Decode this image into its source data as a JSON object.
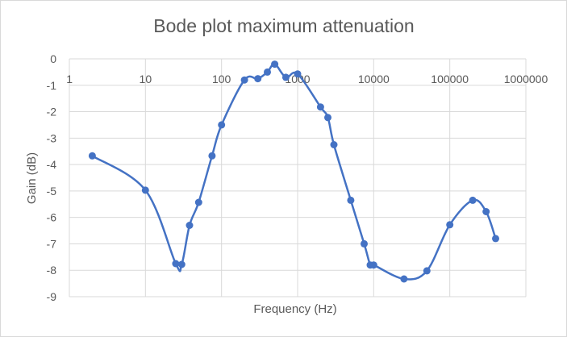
{
  "chart_data": {
    "type": "scatter",
    "title": "Bode plot maximum attenuation",
    "xlabel": "Frequency (Hz)",
    "ylabel": "Gain (dB)",
    "x_scale": "log",
    "xlim": [
      1,
      1000000
    ],
    "ylim": [
      -9,
      0
    ],
    "x_tick_labels": [
      "1",
      "10",
      "100",
      "1000",
      "10000",
      "100000",
      "1000000"
    ],
    "y_tick_labels": [
      "0",
      "-1",
      "-2",
      "-3",
      "-4",
      "-5",
      "-6",
      "-7",
      "-8",
      "-9"
    ],
    "grid": true,
    "legend": "none",
    "smooth_line": true,
    "series_color": "#4472c4",
    "series": [
      {
        "points": [
          [
            2,
            -3.67
          ],
          [
            10,
            -4.97
          ],
          [
            25,
            -7.75
          ],
          [
            30,
            -7.78
          ],
          [
            38,
            -6.3
          ],
          [
            50,
            -5.43
          ],
          [
            75,
            -3.67
          ],
          [
            100,
            -2.5
          ],
          [
            200,
            -0.8
          ],
          [
            300,
            -0.75
          ],
          [
            400,
            -0.5
          ],
          [
            500,
            -0.2
          ],
          [
            700,
            -0.7
          ],
          [
            1000,
            -0.57
          ],
          [
            2000,
            -1.82
          ],
          [
            2500,
            -2.22
          ],
          [
            3000,
            -3.25
          ],
          [
            5000,
            -5.35
          ],
          [
            7500,
            -7.0
          ],
          [
            9000,
            -7.8
          ],
          [
            10000,
            -7.8
          ],
          [
            25000,
            -8.33
          ],
          [
            50000,
            -8.02
          ],
          [
            100000,
            -6.28
          ],
          [
            200000,
            -5.35
          ],
          [
            300000,
            -5.78
          ],
          [
            400000,
            -6.8
          ]
        ]
      }
    ]
  }
}
